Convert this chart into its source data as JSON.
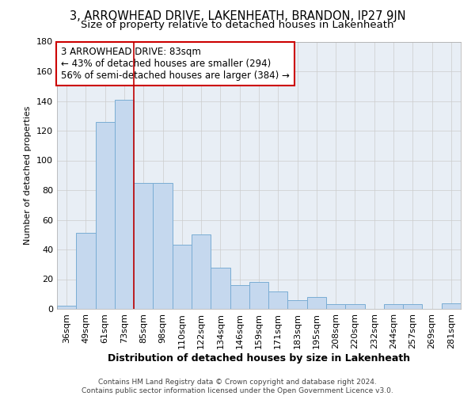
{
  "title": "3, ARROWHEAD DRIVE, LAKENHEATH, BRANDON, IP27 9JN",
  "subtitle": "Size of property relative to detached houses in Lakenheath",
  "xlabel": "Distribution of detached houses by size in Lakenheath",
  "ylabel": "Number of detached properties",
  "categories": [
    "36sqm",
    "49sqm",
    "61sqm",
    "73sqm",
    "85sqm",
    "98sqm",
    "110sqm",
    "122sqm",
    "134sqm",
    "146sqm",
    "159sqm",
    "171sqm",
    "183sqm",
    "195sqm",
    "208sqm",
    "220sqm",
    "232sqm",
    "244sqm",
    "257sqm",
    "269sqm",
    "281sqm"
  ],
  "values": [
    2,
    51,
    126,
    141,
    85,
    85,
    43,
    50,
    28,
    16,
    18,
    12,
    6,
    8,
    3,
    3,
    0,
    3,
    3,
    0,
    4
  ],
  "bar_color": "#c5d8ee",
  "bar_edge_color": "#7aadd4",
  "vline_index": 3.5,
  "vline_color": "#c00000",
  "annotation_line1": "3 ARROWHEAD DRIVE: 83sqm",
  "annotation_line2": "← 43% of detached houses are smaller (294)",
  "annotation_line3": "56% of semi-detached houses are larger (384) →",
  "annotation_box_color": "#ffffff",
  "annotation_box_edge_color": "#cc0000",
  "ylim": [
    0,
    180
  ],
  "yticks": [
    0,
    20,
    40,
    60,
    80,
    100,
    120,
    140,
    160,
    180
  ],
  "grid_color": "#cccccc",
  "bg_color": "#e8eef5",
  "footer_line1": "Contains HM Land Registry data © Crown copyright and database right 2024.",
  "footer_line2": "Contains public sector information licensed under the Open Government Licence v3.0.",
  "title_fontsize": 10.5,
  "subtitle_fontsize": 9.5,
  "xlabel_fontsize": 9,
  "ylabel_fontsize": 8,
  "tick_fontsize": 8,
  "annotation_fontsize": 8.5,
  "footer_fontsize": 6.5
}
